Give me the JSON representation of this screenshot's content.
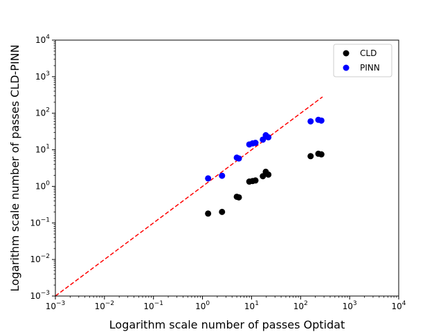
{
  "chart_data": {
    "type": "scatter",
    "title": "",
    "xlabel": "Logarithm scale number of passes  Optidat",
    "ylabel": "Logarithm scale number of passes CLD-PINN",
    "xscale": "log",
    "yscale": "log",
    "xlim": [
      0.001,
      10000
    ],
    "ylim": [
      0.001,
      10000
    ],
    "grid": false,
    "legend_position": "top-right",
    "x_ticks": [
      {
        "base": "10",
        "exp": "−3"
      },
      {
        "base": "10",
        "exp": "−2"
      },
      {
        "base": "10",
        "exp": "−1"
      },
      {
        "base": "10",
        "exp": "0"
      },
      {
        "base": "10",
        "exp": "1"
      },
      {
        "base": "10",
        "exp": "2"
      },
      {
        "base": "10",
        "exp": "3"
      },
      {
        "base": "10",
        "exp": "4"
      }
    ],
    "y_ticks": [
      {
        "base": "10",
        "exp": "−3"
      },
      {
        "base": "10",
        "exp": "−2"
      },
      {
        "base": "10",
        "exp": "−1"
      },
      {
        "base": "10",
        "exp": "0"
      },
      {
        "base": "10",
        "exp": "1"
      },
      {
        "base": "10",
        "exp": "2"
      },
      {
        "base": "10",
        "exp": "3"
      },
      {
        "base": "10",
        "exp": "4"
      }
    ],
    "reference_line": {
      "x": [
        0.001,
        280
      ],
      "y": [
        0.001,
        280
      ],
      "color": "#ff0000",
      "style": "dashed"
    },
    "series": [
      {
        "name": "CLD",
        "color": "#000000",
        "points": [
          {
            "x": 1.3,
            "y": 0.18
          },
          {
            "x": 2.5,
            "y": 0.2
          },
          {
            "x": 5.0,
            "y": 0.52
          },
          {
            "x": 5.5,
            "y": 0.5
          },
          {
            "x": 9.0,
            "y": 1.35
          },
          {
            "x": 10.5,
            "y": 1.4
          },
          {
            "x": 12.0,
            "y": 1.45
          },
          {
            "x": 17.0,
            "y": 1.9
          },
          {
            "x": 19.5,
            "y": 2.5
          },
          {
            "x": 22.0,
            "y": 2.1
          },
          {
            "x": 160,
            "y": 6.7
          },
          {
            "x": 230,
            "y": 7.8
          },
          {
            "x": 265,
            "y": 7.5
          }
        ]
      },
      {
        "name": "PINN",
        "color": "#0000ff",
        "points": [
          {
            "x": 1.3,
            "y": 1.65
          },
          {
            "x": 2.5,
            "y": 1.95
          },
          {
            "x": 5.0,
            "y": 6.1
          },
          {
            "x": 5.5,
            "y": 5.8
          },
          {
            "x": 9.0,
            "y": 14
          },
          {
            "x": 10.5,
            "y": 15
          },
          {
            "x": 12.0,
            "y": 15.5
          },
          {
            "x": 17.0,
            "y": 19
          },
          {
            "x": 19.5,
            "y": 25
          },
          {
            "x": 22.0,
            "y": 22
          },
          {
            "x": 160,
            "y": 60
          },
          {
            "x": 230,
            "y": 66
          },
          {
            "x": 265,
            "y": 63
          }
        ]
      }
    ]
  }
}
